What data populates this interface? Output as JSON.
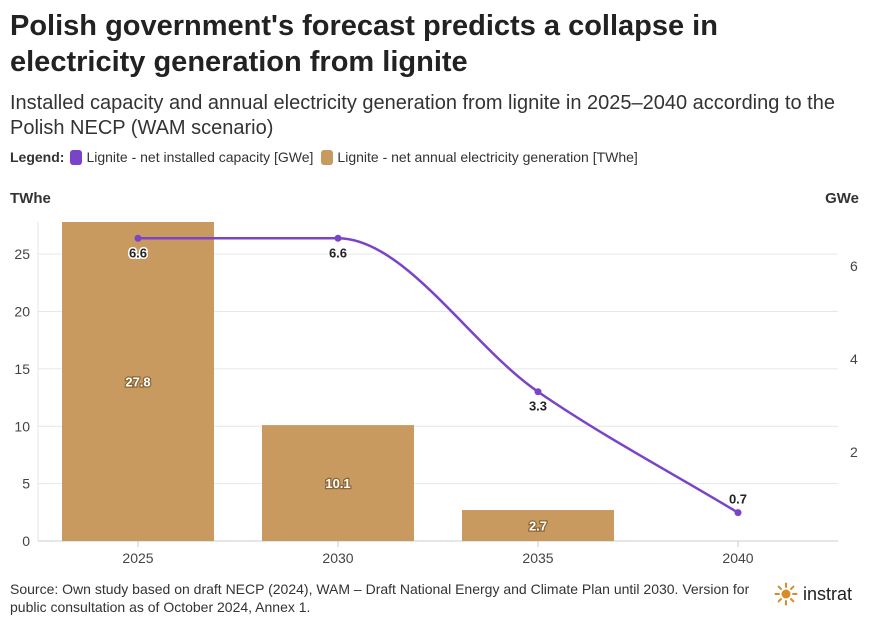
{
  "title": "Polish government's forecast predicts a collapse in electricity generation from lignite",
  "subtitle": "Installed capacity and annual electricity generation from lignite in 2025–2040 according to the Polish NECP (WAM scenario)",
  "legend": {
    "title": "Legend:",
    "items": [
      {
        "label": "Lignite - net installed capacity [GWe]",
        "color": "#7b44c8"
      },
      {
        "label": "Lignite - net annual electricity generation [TWhe]",
        "color": "#c99a60"
      }
    ]
  },
  "axis_units": {
    "left": "TWhe",
    "right": "GWe"
  },
  "source": "Source: Own study based on draft NECP (2024), WAM – Draft National Energy and Climate Plan until 2030. Version for public consultation as of October 2024, Annex 1.",
  "brand": {
    "name": "instrat",
    "icon": "sun-icon",
    "color": "#d98a2b"
  },
  "chart_data": {
    "type": "bar+line",
    "categories": [
      "2025",
      "2030",
      "2035",
      "2040"
    ],
    "series": [
      {
        "name": "Lignite - net annual electricity generation [TWhe]",
        "type": "bar",
        "axis": "left",
        "color": "#c99a60",
        "values": [
          27.8,
          10.1,
          2.7,
          null
        ],
        "labels": [
          "27.8",
          "10.1",
          "2.7",
          ""
        ]
      },
      {
        "name": "Lignite - net installed capacity [GWe]",
        "type": "line",
        "axis": "right",
        "color": "#7b44c8",
        "values": [
          6.6,
          6.6,
          3.3,
          0.7
        ],
        "labels": [
          "6.6",
          "6.6",
          "3.3",
          "0.7"
        ]
      }
    ],
    "left_axis": {
      "ticks": [
        "0",
        "5",
        "10",
        "15",
        "20",
        "25"
      ],
      "tick_values": [
        0,
        5,
        10,
        15,
        20,
        25
      ],
      "range": [
        0,
        27.8
      ]
    },
    "right_axis": {
      "ticks": [
        "2",
        "4",
        "6"
      ],
      "tick_values": [
        2,
        4,
        6
      ],
      "range": [
        0.09,
        6.95
      ]
    },
    "grid": true
  }
}
